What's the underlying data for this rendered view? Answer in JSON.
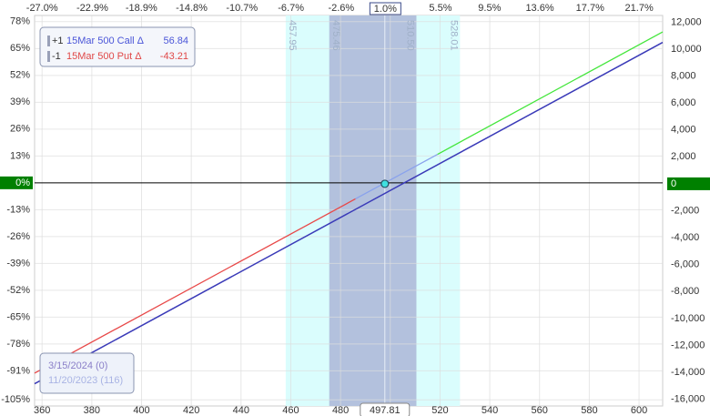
{
  "chart_data": {
    "type": "line",
    "xlim": [
      357,
      609.5
    ],
    "xticks": [
      360,
      380,
      400,
      420,
      440,
      460,
      480,
      500,
      520,
      540,
      560,
      580,
      600
    ],
    "x2lim": [
      -27.61,
      23.62
    ],
    "x2ticks": [
      {
        "value": -27.0,
        "label": "-27.0%"
      },
      {
        "value": -22.9,
        "label": "-22.9%"
      },
      {
        "value": -18.9,
        "label": "-18.9%"
      },
      {
        "value": -14.8,
        "label": "-14.8%"
      },
      {
        "value": -10.7,
        "label": "-10.7%"
      },
      {
        "value": -6.7,
        "label": "-6.7%"
      },
      {
        "value": -2.6,
        "label": "-2.6%"
      },
      {
        "value": 5.5,
        "label": "5.5%"
      },
      {
        "value": 9.5,
        "label": "9.5%"
      },
      {
        "value": 13.6,
        "label": "13.6%"
      },
      {
        "value": 17.7,
        "label": "17.7%"
      },
      {
        "value": 21.7,
        "label": "21.7%"
      }
    ],
    "ylim": [
      -108,
      81
    ],
    "yticks": [
      {
        "value": 78,
        "label": "78%"
      },
      {
        "value": 65,
        "label": "65%"
      },
      {
        "value": 52,
        "label": "52%"
      },
      {
        "value": 39,
        "label": "39%"
      },
      {
        "value": 26,
        "label": "26%"
      },
      {
        "value": 13,
        "label": "13%"
      },
      {
        "value": 0,
        "label": "0%"
      },
      {
        "value": -13,
        "label": "-13%"
      },
      {
        "value": -26,
        "label": "-26%"
      },
      {
        "value": -39,
        "label": "-39%"
      },
      {
        "value": -52,
        "label": "-52%"
      },
      {
        "value": -65,
        "label": "-65%"
      },
      {
        "value": -78,
        "label": "-78%"
      },
      {
        "value": -91,
        "label": "-91%"
      },
      {
        "value": -105,
        "label": "-105%"
      }
    ],
    "y2lim": [
      -16500,
      12500
    ],
    "y2ticks": [
      {
        "value": 12000,
        "label": "12,000"
      },
      {
        "value": 10000,
        "label": "10,000"
      },
      {
        "value": 8000,
        "label": "8,000"
      },
      {
        "value": 6000,
        "label": "6,000"
      },
      {
        "value": 4000,
        "label": "4,000"
      },
      {
        "value": 2000,
        "label": "2,000"
      },
      0,
      {
        "value": -2000,
        "label": "-2,000"
      },
      {
        "value": -4000,
        "label": "-4,000"
      },
      {
        "value": -6000,
        "label": "-6,000"
      },
      {
        "value": -8000,
        "label": "-8,000"
      },
      {
        "value": -10000,
        "label": "-10,000"
      },
      {
        "value": -12000,
        "label": "-12,000"
      },
      {
        "value": -14000,
        "label": "-14,000"
      },
      {
        "value": -16000,
        "label": "-16,000"
      }
    ],
    "grid": true,
    "zero_color": "#008000",
    "bands": [
      {
        "low": 457.95,
        "high": 528.01,
        "color": "#dafdfd"
      },
      {
        "low": 475.46,
        "high": {
          "value": 510.5,
          "label": "510.50"
        },
        "color": "#b3c1dd"
      }
    ],
    "current_price": 497.81,
    "current_change": {
      "value": 1.0,
      "label": "1.0%"
    },
    "positions": [
      {
        "qty": "+1",
        "label": "15Mar 500 Call Δ",
        "delta": 56.84,
        "color": "#4a55d8"
      },
      {
        "qty": "-1",
        "label": "15Mar 500 Put Δ",
        "delta": -43.21,
        "color": "#e04848"
      }
    ],
    "series": [
      {
        "name": "3/15/2024 (0)",
        "color": "#3a3ab8",
        "legend_color": "#8a7fc8",
        "axis": "y2",
        "x": [
          357,
          609.5
        ],
        "values": [
          -14850,
          10500
        ]
      },
      {
        "name": "11/20/2023 (116)",
        "legend_color": "#a9b4e4",
        "axis": "y2",
        "segment_colors": [
          "#e84848",
          "#8aa2ec",
          "#44e63c"
        ],
        "x": [
          357,
          486,
          519,
          609.5
        ],
        "values": [
          -14060,
          -1120,
          2190,
          11280
        ]
      }
    ]
  }
}
